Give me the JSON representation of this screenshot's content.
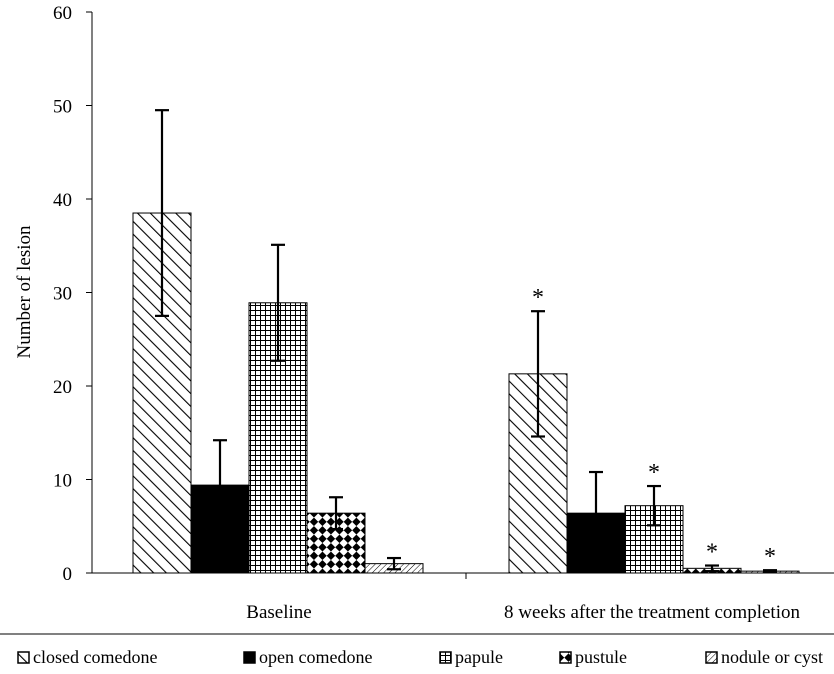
{
  "chart_data": {
    "type": "bar",
    "ylabel": "Number of lesion",
    "ylim": [
      0,
      60
    ],
    "yticks": [
      "0",
      "10",
      "20",
      "30",
      "40",
      "50",
      "60"
    ],
    "categories": [
      "Baseline",
      "8 weeks after the treatment completion"
    ],
    "series": [
      {
        "name": "closed comedone",
        "values": [
          38.5,
          21.3
        ],
        "errors": [
          11.0,
          6.7
        ],
        "significant": [
          false,
          true
        ],
        "pattern": "diag-hatch"
      },
      {
        "name": "open comedone",
        "values": [
          9.4,
          6.4
        ],
        "errors": [
          4.8,
          4.4
        ],
        "significant": [
          false,
          false
        ],
        "pattern": "solid-black"
      },
      {
        "name": "papule",
        "values": [
          28.9,
          7.2
        ],
        "errors": [
          6.2,
          2.1
        ],
        "significant": [
          false,
          true
        ],
        "pattern": "grid"
      },
      {
        "name": "pustule",
        "values": [
          6.4,
          0.5
        ],
        "errors": [
          1.7,
          0.3
        ],
        "significant": [
          false,
          true
        ],
        "pattern": "checker"
      },
      {
        "name": "nodule or cyst",
        "values": [
          1.0,
          0.2
        ],
        "errors": [
          0.6,
          0.1
        ],
        "significant": [
          false,
          true
        ],
        "pattern": "fine-diag"
      }
    ],
    "significance_marker": "*",
    "grid": false,
    "legend_position": "bottom"
  }
}
